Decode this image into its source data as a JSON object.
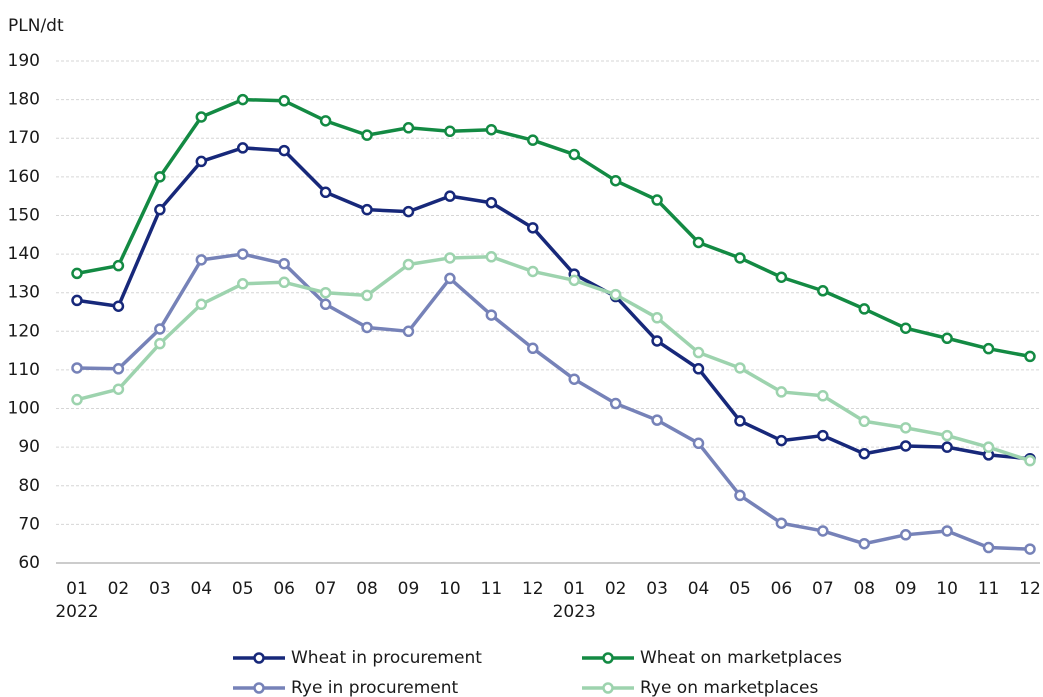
{
  "chart_data": {
    "type": "line",
    "y_axis_label": "PLN/dt",
    "categories": [
      "01",
      "02",
      "03",
      "04",
      "05",
      "06",
      "07",
      "08",
      "09",
      "10",
      "11",
      "12",
      "01",
      "02",
      "03",
      "04",
      "05",
      "06",
      "07",
      "08",
      "09",
      "10",
      "11",
      "12"
    ],
    "category_years": [
      "2022",
      null,
      null,
      null,
      null,
      null,
      null,
      null,
      null,
      null,
      null,
      null,
      "2023",
      null,
      null,
      null,
      null,
      null,
      null,
      null,
      null,
      null,
      null,
      null
    ],
    "ylim": [
      60,
      190
    ],
    "yticks": [
      60,
      70,
      80,
      90,
      100,
      110,
      120,
      130,
      140,
      150,
      160,
      170,
      180,
      190
    ],
    "grid": true,
    "legend": "bottom",
    "series": [
      {
        "name": "Wheat in procurement",
        "color": "#17287a",
        "values": [
          128,
          126.5,
          151.5,
          164,
          167.5,
          166.8,
          156,
          151.5,
          151,
          155,
          153.3,
          146.8,
          134.8,
          129,
          117.5,
          110.3,
          96.8,
          91.7,
          93,
          88.3,
          90.3,
          90,
          88,
          87
        ]
      },
      {
        "name": "Wheat on marketplaces",
        "color": "#138a43",
        "values": [
          135,
          137,
          160,
          175.5,
          180,
          179.7,
          174.5,
          170.8,
          172.7,
          171.8,
          172.2,
          169.5,
          165.8,
          159,
          154,
          143,
          139,
          134,
          130.5,
          125.8,
          120.8,
          118.2,
          115.5,
          113.5
        ]
      },
      {
        "name": "Rye in procurement",
        "color": "#7682b8",
        "values": [
          110.5,
          110.3,
          120.6,
          138.5,
          140,
          137.5,
          127,
          121,
          120,
          133.7,
          124.2,
          115.6,
          107.6,
          101.3,
          97,
          91,
          77.5,
          70.3,
          68.3,
          65,
          67.3,
          68.3,
          64,
          63.6
        ]
      },
      {
        "name": "Rye on marketplaces",
        "color": "#9dd3ae",
        "values": [
          102.3,
          105,
          116.8,
          127,
          132.3,
          132.7,
          130,
          129.3,
          137.3,
          139,
          139.3,
          135.5,
          133.2,
          129.5,
          123.5,
          114.5,
          110.5,
          104.3,
          103.3,
          96.7,
          95,
          93,
          90,
          86.5
        ]
      }
    ]
  }
}
